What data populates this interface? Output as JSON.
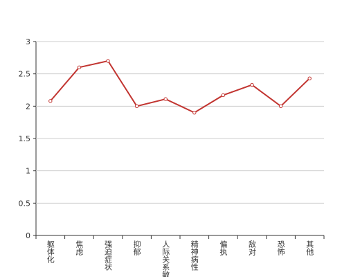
{
  "chart_data": {
    "type": "line",
    "categories": [
      "躯体化",
      "焦虑",
      "强迫症状",
      "抑郁",
      "人际关系敏感",
      "精神病性",
      "偏执",
      "敌对",
      "恐怖",
      "其他"
    ],
    "values": [
      2.08,
      2.6,
      2.7,
      2.0,
      2.11,
      1.9,
      2.17,
      2.33,
      2.0,
      2.43
    ],
    "color": "#c23531",
    "ylim": [
      0,
      3
    ],
    "yticks": [
      0,
      0.5,
      1,
      1.5,
      2,
      2.5,
      3
    ],
    "grid": true
  }
}
